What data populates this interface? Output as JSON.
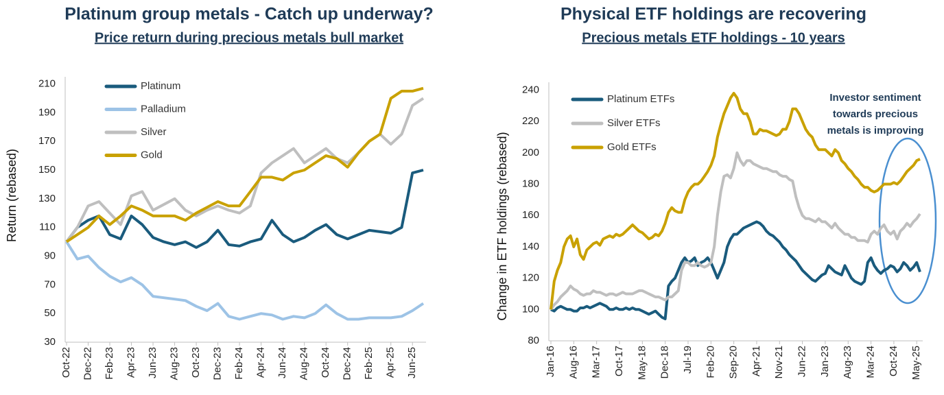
{
  "chart_data": [
    {
      "type": "line",
      "title": "Platinum group metals - Catch up underway?",
      "subtitle": "Price return during precious metals bull market",
      "y_label": "Return (rebased)",
      "categories": [
        "Oct-22",
        null,
        "Dec-22",
        null,
        "Feb-23",
        null,
        "Apr-23",
        null,
        "Jun-23",
        null,
        "Aug-23",
        null,
        "Oct-23",
        null,
        "Dec-23",
        null,
        "Feb-24",
        null,
        "Apr-24",
        null,
        "Jun-24",
        null,
        "Aug-24",
        null,
        "Oct-24",
        null,
        "Dec-24",
        null,
        "Feb-25",
        null,
        "Apr-25",
        null,
        "Jun-25",
        null
      ],
      "ylim": [
        30,
        215
      ],
      "yticks": [
        30,
        50,
        70,
        90,
        110,
        130,
        150,
        170,
        190,
        210
      ],
      "grid": false,
      "legend": "top-left",
      "series": [
        {
          "name": "Platinum",
          "color": "#1a5b7d",
          "values": [
            100,
            110,
            115,
            118,
            105,
            102,
            118,
            112,
            103,
            100,
            98,
            100,
            96,
            100,
            108,
            98,
            97,
            100,
            102,
            115,
            105,
            100,
            103,
            108,
            112,
            105,
            102,
            105,
            108,
            107,
            106,
            110,
            148,
            150
          ]
        },
        {
          "name": "Palladium",
          "color": "#9dc3e6",
          "values": [
            100,
            88,
            90,
            82,
            76,
            72,
            75,
            70,
            62,
            61,
            60,
            59,
            55,
            52,
            57,
            48,
            46,
            48,
            50,
            49,
            46,
            48,
            47,
            50,
            56,
            50,
            46,
            46,
            47,
            47,
            47,
            48,
            52,
            57
          ]
        },
        {
          "name": "Silver",
          "color": "#bfbfbf",
          "values": [
            100,
            110,
            125,
            128,
            120,
            112,
            132,
            135,
            122,
            126,
            130,
            122,
            118,
            122,
            125,
            122,
            120,
            125,
            148,
            155,
            160,
            165,
            155,
            160,
            165,
            158,
            155,
            162,
            170,
            175,
            168,
            175,
            195,
            200
          ]
        },
        {
          "name": "Gold",
          "color": "#c9a100",
          "values": [
            100,
            105,
            110,
            118,
            112,
            118,
            125,
            122,
            118,
            118,
            118,
            115,
            120,
            124,
            128,
            125,
            125,
            135,
            145,
            145,
            143,
            148,
            150,
            155,
            160,
            158,
            152,
            162,
            170,
            175,
            200,
            205,
            205,
            207
          ]
        }
      ]
    },
    {
      "type": "line",
      "title": "Physical ETF holdings are recovering",
      "subtitle": "Precious metals ETF holdings - 10 years",
      "y_label": "Change in ETF holdings (rebased)",
      "annotation": [
        "Investor sentiment",
        "towards precious",
        "metals is improving"
      ],
      "categories": [
        "Jan-16",
        null,
        null,
        null,
        null,
        null,
        null,
        "Aug-16",
        null,
        null,
        null,
        null,
        null,
        null,
        "Mar-17",
        null,
        null,
        null,
        null,
        null,
        null,
        "Oct-17",
        null,
        null,
        null,
        null,
        null,
        null,
        "May-18",
        null,
        null,
        null,
        null,
        null,
        null,
        "Dec-18",
        null,
        null,
        null,
        null,
        null,
        null,
        "Jul-19",
        null,
        null,
        null,
        null,
        null,
        null,
        "Feb-20",
        null,
        null,
        null,
        null,
        null,
        null,
        "Sep-20",
        null,
        null,
        null,
        null,
        null,
        null,
        "Apr-21",
        null,
        null,
        null,
        null,
        null,
        null,
        "Nov-21",
        null,
        null,
        null,
        null,
        null,
        null,
        "Jun-22",
        null,
        null,
        null,
        null,
        null,
        null,
        "Jan-23",
        null,
        null,
        null,
        null,
        null,
        null,
        "Aug-23",
        null,
        null,
        null,
        null,
        null,
        null,
        "Mar-24",
        null,
        null,
        null,
        null,
        null,
        null,
        "Oct-24",
        null,
        null,
        null,
        null,
        null,
        null,
        "May-25",
        null
      ],
      "ylim": [
        80,
        245
      ],
      "yticks": [
        80,
        100,
        120,
        140,
        160,
        180,
        200,
        220,
        240
      ],
      "grid": false,
      "legend": "top-left",
      "series": [
        {
          "name": "Platinum ETFs",
          "color": "#1a5b7d",
          "values": [
            100,
            99,
            101,
            102,
            101,
            100,
            100,
            99,
            99,
            101,
            101,
            102,
            101,
            102,
            103,
            104,
            103,
            102,
            100,
            100,
            101,
            100,
            100,
            101,
            100,
            101,
            100,
            100,
            99,
            98,
            97,
            98,
            99,
            97,
            95,
            94,
            115,
            118,
            120,
            125,
            130,
            133,
            130,
            131,
            133,
            128,
            130,
            131,
            133,
            130,
            125,
            120,
            125,
            130,
            140,
            145,
            148,
            148,
            150,
            152,
            153,
            154,
            155,
            156,
            155,
            153,
            150,
            148,
            147,
            145,
            143,
            140,
            138,
            135,
            133,
            131,
            128,
            125,
            123,
            121,
            119,
            118,
            120,
            122,
            123,
            128,
            126,
            124,
            123,
            122,
            128,
            124,
            120,
            118,
            117,
            116,
            118,
            130,
            133,
            128,
            125,
            123,
            125,
            126,
            128,
            127,
            124,
            126,
            130,
            128,
            125,
            127,
            130,
            124
          ]
        },
        {
          "name": "Silver ETFs",
          "color": "#bfbfbf",
          "values": [
            100,
            103,
            105,
            108,
            110,
            112,
            115,
            113,
            112,
            110,
            109,
            110,
            110,
            112,
            111,
            111,
            110,
            109,
            110,
            110,
            109,
            110,
            111,
            110,
            110,
            110,
            111,
            112,
            112,
            111,
            110,
            109,
            108,
            108,
            107,
            106,
            108,
            108,
            110,
            112,
            125,
            130,
            130,
            128,
            128,
            130,
            128,
            127,
            128,
            130,
            140,
            160,
            175,
            185,
            186,
            184,
            190,
            200,
            195,
            192,
            195,
            195,
            193,
            192,
            191,
            190,
            190,
            189,
            188,
            188,
            186,
            185,
            185,
            183,
            182,
            172,
            165,
            160,
            158,
            158,
            157,
            156,
            158,
            156,
            156,
            154,
            152,
            155,
            152,
            150,
            148,
            148,
            146,
            146,
            144,
            144,
            144,
            143,
            148,
            150,
            148,
            152,
            154,
            150,
            148,
            150,
            145,
            150,
            152,
            155,
            153,
            156,
            158,
            161
          ]
        },
        {
          "name": "Gold ETFs",
          "color": "#c9a100",
          "values": [
            100,
            118,
            125,
            130,
            140,
            145,
            147,
            140,
            145,
            135,
            132,
            138,
            140,
            142,
            143,
            141,
            145,
            146,
            147,
            146,
            148,
            147,
            148,
            150,
            152,
            154,
            152,
            150,
            149,
            147,
            145,
            146,
            148,
            147,
            150,
            155,
            162,
            165,
            163,
            162,
            162,
            170,
            175,
            178,
            180,
            180,
            182,
            185,
            188,
            192,
            198,
            210,
            218,
            225,
            230,
            235,
            238,
            235,
            228,
            225,
            225,
            220,
            212,
            212,
            215,
            214,
            214,
            213,
            212,
            211,
            212,
            215,
            215,
            220,
            228,
            228,
            225,
            220,
            215,
            212,
            210,
            205,
            202,
            202,
            202,
            200,
            198,
            202,
            200,
            195,
            193,
            190,
            188,
            185,
            183,
            180,
            178,
            178,
            176,
            175,
            176,
            178,
            180,
            180,
            180,
            181,
            180,
            182,
            185,
            188,
            190,
            192,
            195,
            196
          ]
        }
      ]
    }
  ]
}
